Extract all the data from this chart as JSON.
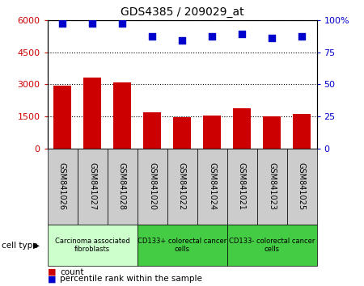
{
  "title": "GDS4385 / 209029_at",
  "samples": [
    "GSM841026",
    "GSM841027",
    "GSM841028",
    "GSM841020",
    "GSM841022",
    "GSM841024",
    "GSM841021",
    "GSM841023",
    "GSM841025"
  ],
  "counts": [
    2950,
    3300,
    3100,
    1700,
    1480,
    1550,
    1900,
    1500,
    1620
  ],
  "percentile_ranks": [
    97.5,
    97.5,
    97.5,
    87,
    84,
    87,
    89,
    86,
    87
  ],
  "ylim_left": [
    0,
    6000
  ],
  "ylim_right": [
    0,
    100
  ],
  "yticks_left": [
    0,
    1500,
    3000,
    4500,
    6000
  ],
  "yticks_right": [
    0,
    25,
    50,
    75,
    100
  ],
  "cell_type_groups": [
    {
      "label": "Carcinoma associated\nfibroblasts",
      "start": 0,
      "end": 3,
      "color": "#ccffcc"
    },
    {
      "label": "CD133+ colorectal cancer\ncells",
      "start": 3,
      "end": 6,
      "color": "#44cc44"
    },
    {
      "label": "CD133- colorectal cancer\ncells",
      "start": 6,
      "end": 9,
      "color": "#44cc44"
    }
  ],
  "bar_color": "#cc0000",
  "dot_color": "#0000cc",
  "bg_color": "#ffffff",
  "tick_label_bg": "#cccccc",
  "cell_type_label": "cell type",
  "legend_count_label": "count",
  "legend_pct_label": "percentile rank within the sample"
}
